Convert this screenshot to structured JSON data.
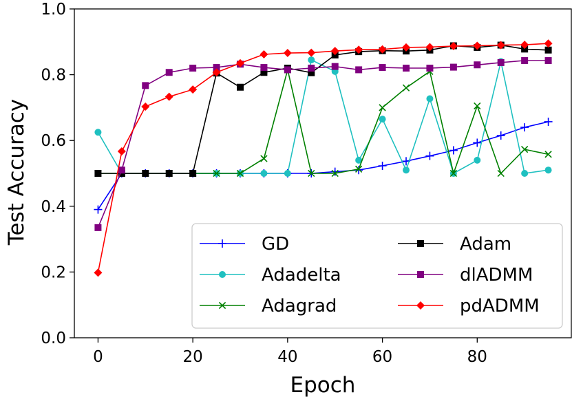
{
  "chart_data": {
    "type": "line",
    "title": "",
    "xlabel": "Epoch",
    "ylabel": "Test Accuracy",
    "xlim": [
      -5,
      100
    ],
    "ylim": [
      0.0,
      1.0
    ],
    "xticks": [
      0,
      20,
      40,
      60,
      80
    ],
    "xtick_labels": [
      "0",
      "20",
      "40",
      "60",
      "80"
    ],
    "yticks": [
      0.0,
      0.2,
      0.4,
      0.6,
      0.8,
      1.0
    ],
    "ytick_labels": [
      "0.0",
      "0.2",
      "0.4",
      "0.6",
      "0.8",
      "1.0"
    ],
    "grid": false,
    "legend_position": "lower-right",
    "x": [
      0,
      5,
      10,
      15,
      20,
      25,
      30,
      35,
      40,
      45,
      50,
      55,
      60,
      65,
      70,
      75,
      80,
      85,
      90,
      95
    ],
    "series": [
      {
        "name": "GD",
        "color": "#0000ff",
        "marker": "plus",
        "values": [
          0.39,
          0.5,
          0.5,
          0.5,
          0.5,
          0.5,
          0.5,
          0.5,
          0.5,
          0.5,
          0.505,
          0.51,
          0.523,
          0.537,
          0.553,
          0.57,
          0.593,
          0.615,
          0.64,
          0.657
        ]
      },
      {
        "name": "Adadelta",
        "color": "#1fc0c0",
        "marker": "circle",
        "values": [
          0.625,
          0.5,
          0.5,
          0.5,
          0.5,
          0.5,
          0.5,
          0.5,
          0.5,
          0.845,
          0.81,
          0.54,
          0.665,
          0.51,
          0.727,
          0.5,
          0.54,
          0.84,
          0.5,
          0.51
        ]
      },
      {
        "name": "Adagrad",
        "color": "#008000",
        "marker": "x",
        "values": [
          0.5,
          0.5,
          0.5,
          0.5,
          0.5,
          0.5,
          0.5,
          0.545,
          0.815,
          0.5,
          0.5,
          0.513,
          0.7,
          0.76,
          0.81,
          0.5,
          0.705,
          0.5,
          0.573,
          0.558
        ]
      },
      {
        "name": "Adam",
        "color": "#000000",
        "marker": "square",
        "values": [
          0.5,
          0.5,
          0.5,
          0.5,
          0.5,
          0.805,
          0.762,
          0.807,
          0.82,
          0.806,
          0.86,
          0.87,
          0.873,
          0.872,
          0.875,
          0.888,
          0.883,
          0.89,
          0.878,
          0.875
        ]
      },
      {
        "name": "dlADMM",
        "color": "#800080",
        "marker": "square",
        "values": [
          0.335,
          0.51,
          0.767,
          0.807,
          0.82,
          0.822,
          0.832,
          0.822,
          0.815,
          0.82,
          0.825,
          0.815,
          0.822,
          0.82,
          0.82,
          0.823,
          0.83,
          0.837,
          0.843,
          0.843
        ]
      },
      {
        "name": "pdADMM",
        "color": "#ff0000",
        "marker": "diamond",
        "values": [
          0.198,
          0.567,
          0.703,
          0.733,
          0.755,
          0.807,
          0.835,
          0.862,
          0.866,
          0.867,
          0.872,
          0.876,
          0.877,
          0.883,
          0.884,
          0.887,
          0.888,
          0.89,
          0.891,
          0.895
        ]
      }
    ]
  }
}
